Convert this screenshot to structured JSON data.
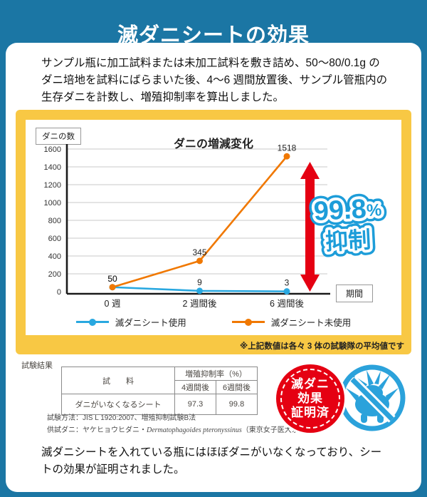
{
  "page": {
    "title": "滅ダニシートの効果",
    "intro": "サンプル瓶に加工試料または未加工試料を敷き詰め、50〜80/0.1g のダニ培地を試料にばらまいた後、4〜6 週間放置後、サンプル管瓶内の生存ダニを計数し、増殖抑制率を算出しました。",
    "conclusion": "滅ダニシートを入れている瓶にはほぼダニがいなくなっており、シートの効果が証明されました。"
  },
  "chart_data": {
    "type": "line",
    "title": "ダニの増減変化",
    "y_axis_box_label": "ダニの数",
    "x_axis_box_label": "期間",
    "categories": [
      "0 週",
      "2 週間後",
      "6 週間後"
    ],
    "series": [
      {
        "name": "滅ダニシート使用",
        "values": [
          50,
          9,
          3
        ],
        "color": "#29a8e0"
      },
      {
        "name": "滅ダニシート未使用",
        "values": [
          50,
          345,
          1518
        ],
        "color": "#f07800"
      }
    ],
    "ylim": [
      0,
      1600
    ],
    "y_tick_step": 200,
    "grid": true,
    "legend_position": "bottom"
  },
  "highlight": {
    "value": "99.8",
    "unit": "%",
    "label": "抑制"
  },
  "footnote": "※上記数値は各々 3 体の試験隊の平均値です",
  "results": {
    "section_label": "試験結果",
    "table": {
      "col_header_sample": "試　　料",
      "col_header_rate": "増殖抑制率（%）",
      "sub_headers": [
        "4週間後",
        "6週間後"
      ],
      "rows": [
        {
          "sample": "ダニがいなくなるシート",
          "week4": "97.3",
          "week6": "99.8"
        }
      ]
    },
    "method": "試験方法：JIS L 1920:2007、増殖抑制試験B法",
    "test_mite_prefix": "供試ダニ：ヤケヒョウヒダニ・",
    "test_mite_latin": "Dermatophagoides pteronyssinus",
    "test_mite_suffix": "（東京女子医大系）"
  },
  "badge": {
    "lines": [
      "滅ダニ",
      "効果",
      "証明済"
    ]
  },
  "colors": {
    "background_blue": "#1b76a4",
    "accent_yellow": "#f8c844",
    "arrow_red": "#e50012",
    "callout_blue": "#1d9dd9",
    "prohibition_blue": "#2ba2db"
  }
}
